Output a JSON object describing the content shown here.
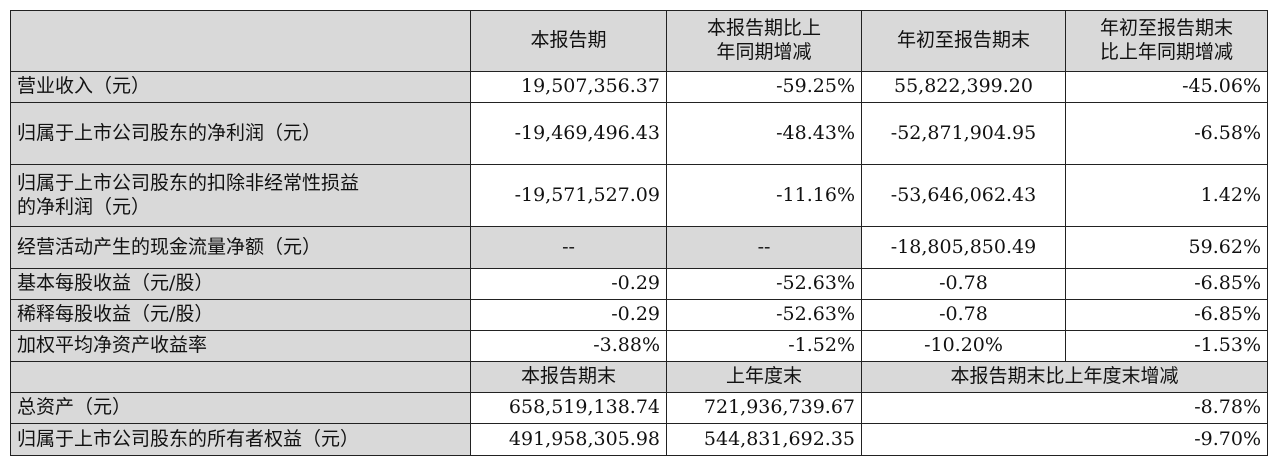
{
  "header": {
    "col1": "本报告期",
    "col2_line1": "本报告期比上",
    "col2_line2": "年同期增减",
    "col3": "年初至报告期末",
    "col4_line1": "年初至报告期末",
    "col4_line2": "比上年同期增减"
  },
  "rows": [
    {
      "label": "营业收入（元）",
      "v1": "19,507,356.37",
      "v2": "-59.25%",
      "v3": "55,822,399.20",
      "v4": "-45.06%"
    },
    {
      "label": "归属于上市公司股东的净利润（元）",
      "v1": "-19,469,496.43",
      "v2": "-48.43%",
      "v3": "-52,871,904.95",
      "v4": "-6.58%"
    },
    {
      "label_line1": "归属于上市公司股东的扣除非经常性损益",
      "label_line2": "的净利润（元）",
      "v1": "-19,571,527.09",
      "v2": "-11.16%",
      "v3": "-53,646,062.43",
      "v4": "1.42%"
    },
    {
      "label": "经营活动产生的现金流量净额（元）",
      "v1": "--",
      "v2": "--",
      "v3": "-18,805,850.49",
      "v4": "59.62%"
    },
    {
      "label": "基本每股收益（元/股）",
      "v1": "-0.29",
      "v2": "-52.63%",
      "v3": "-0.78",
      "v4": "-6.85%"
    },
    {
      "label": "稀释每股收益（元/股）",
      "v1": "-0.29",
      "v2": "-52.63%",
      "v3": "-0.78",
      "v4": "-6.85%"
    },
    {
      "label": "加权平均净资产收益率",
      "v1": "-3.88%",
      "v2": "-1.52%",
      "v3": "-10.20%",
      "v4": "-1.53%"
    }
  ],
  "subheader": {
    "col1": "本报告期末",
    "col2": "上年度末",
    "col3": "本报告期末比上年度末增减"
  },
  "rows2": [
    {
      "label": "总资产（元）",
      "v1": "658,519,138.74",
      "v2": "721,936,739.67",
      "v3": "-8.78%"
    },
    {
      "label": "归属于上市公司股东的所有者权益（元）",
      "v1": "491,958,305.98",
      "v2": "544,831,692.35",
      "v3": "-9.70%"
    }
  ]
}
